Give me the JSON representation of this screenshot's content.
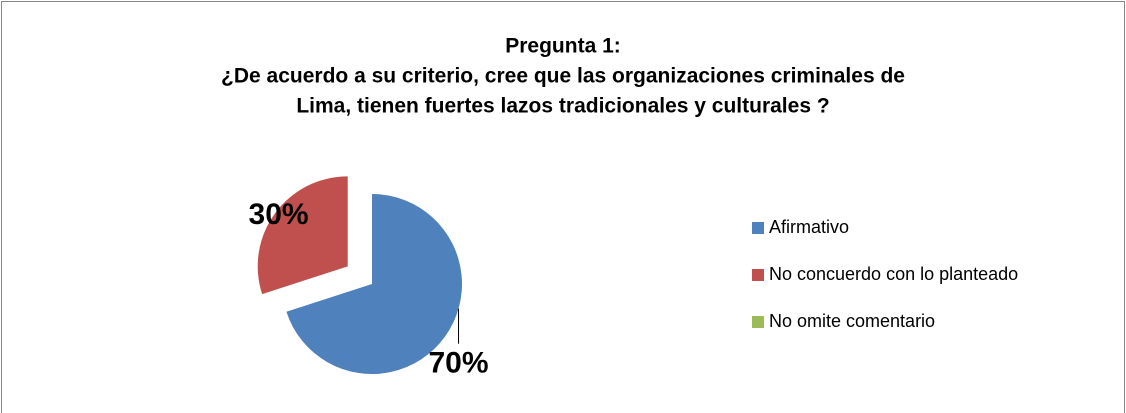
{
  "chart_data": {
    "type": "pie",
    "title": [
      "Pregunta 1:",
      "¿De acuerdo a su criterio, cree que las organizaciones criminales de",
      "Lima, tienen fuertes lazos tradicionales y culturales ?"
    ],
    "categories": [
      "Afirmativo",
      "No concuerdo con lo planteado",
      "No omite comentario"
    ],
    "values": [
      70,
      30,
      0
    ],
    "value_labels": [
      "70%",
      "30%",
      null
    ],
    "colors": [
      "#4f81bd",
      "#c0504d",
      "#9bbb59"
    ],
    "exploded": [
      false,
      true,
      false
    ],
    "legend": "right"
  }
}
